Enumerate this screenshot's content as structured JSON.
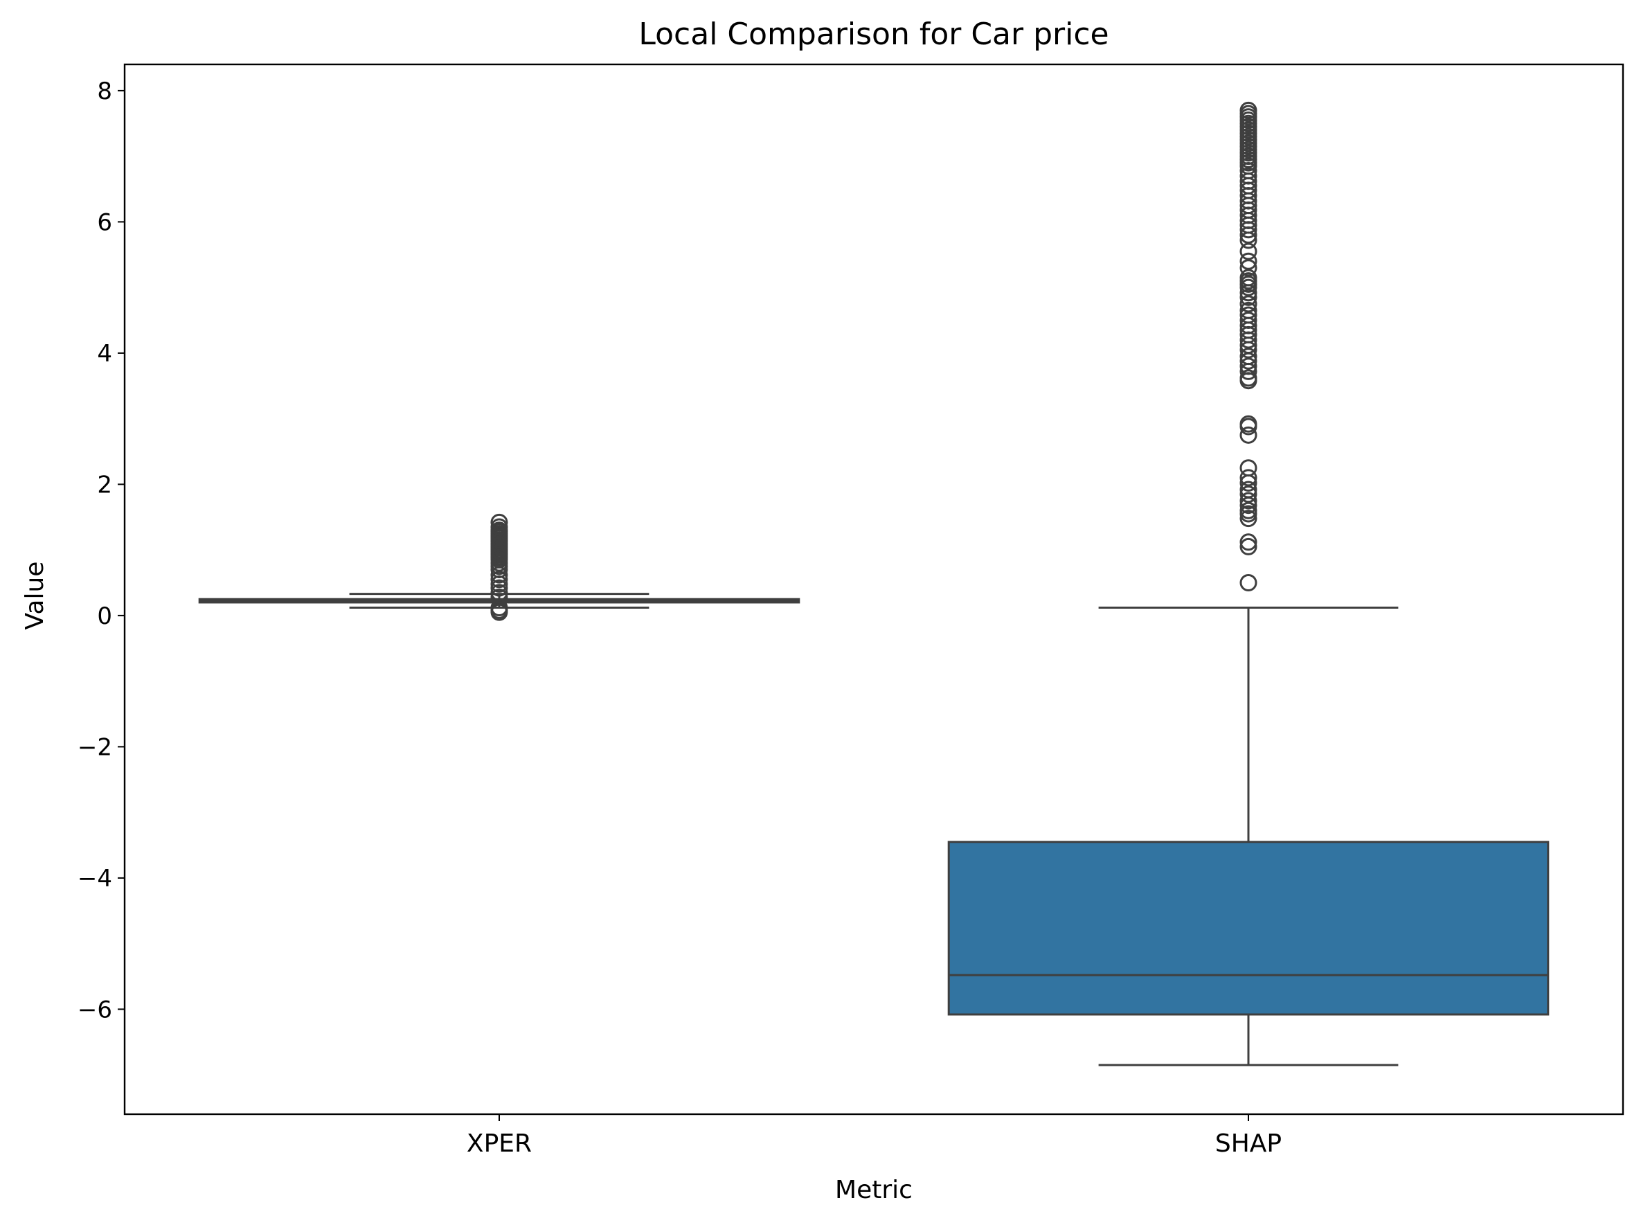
{
  "chart_data": {
    "type": "box",
    "title": "Local Comparison for Car price",
    "xlabel": "Metric",
    "ylabel": "Value",
    "ylim": [
      -7.6,
      8.4
    ],
    "yticks": [
      8,
      6,
      4,
      2,
      0,
      -2,
      -4,
      -6
    ],
    "ytick_labels": [
      "8",
      "6",
      "4",
      "2",
      "0",
      "−2",
      "−4",
      "−6"
    ],
    "grid": false,
    "colors": {
      "box_fill": "#3274a1",
      "line": "#3f3f3f"
    },
    "categories": [
      "XPER",
      "SHAP"
    ],
    "boxes": [
      {
        "label": "XPER",
        "whisker_low": 0.12,
        "q1": 0.2,
        "median": 0.22,
        "q3": 0.25,
        "whisker_high": 0.33,
        "outliers": [
          0.05,
          0.08,
          0.12,
          0.28,
          0.35,
          0.42,
          0.48,
          0.55,
          0.62,
          0.7,
          0.75,
          0.8,
          0.85,
          0.88,
          0.9,
          0.93,
          0.95,
          0.98,
          1.0,
          1.03,
          1.05,
          1.08,
          1.1,
          1.13,
          1.15,
          1.18,
          1.2,
          1.22,
          1.25,
          1.28,
          1.3,
          1.35,
          1.42
        ]
      },
      {
        "label": "SHAP",
        "whisker_low": -6.85,
        "q1": -6.08,
        "median": -5.48,
        "q3": -3.45,
        "whisker_high": 0.12,
        "outliers": [
          0.5,
          1.05,
          1.12,
          1.48,
          1.55,
          1.6,
          1.68,
          1.75,
          1.85,
          1.92,
          2.02,
          2.1,
          2.25,
          2.75,
          2.88,
          2.92,
          3.58,
          3.62,
          3.72,
          3.8,
          3.88,
          3.95,
          4.05,
          4.12,
          4.2,
          4.28,
          4.35,
          4.42,
          4.5,
          4.58,
          4.65,
          4.75,
          4.85,
          4.92,
          5.0,
          5.05,
          5.1,
          5.15,
          5.3,
          5.4,
          5.55,
          5.72,
          5.8,
          5.88,
          5.95,
          6.02,
          6.1,
          6.18,
          6.25,
          6.32,
          6.4,
          6.48,
          6.55,
          6.62,
          6.7,
          6.78,
          6.85,
          6.9,
          6.95,
          7.0,
          7.05,
          7.1,
          7.15,
          7.2,
          7.25,
          7.3,
          7.35,
          7.4,
          7.45,
          7.5,
          7.55,
          7.6,
          7.65,
          7.7
        ]
      }
    ]
  }
}
